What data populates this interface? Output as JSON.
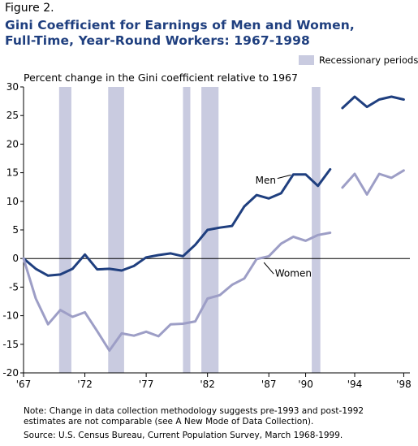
{
  "figure_label": "Figure 2.",
  "chart_data": {
    "type": "line",
    "title": [
      "Gini Coefficient for Earnings of Men and Women,",
      "Full-Time, Year-Round Workers:  1967-1998"
    ],
    "subtitle": "Percent change in the Gini coefficient relative to 1967",
    "legend": {
      "label": "Recessionary periods",
      "placement": "top-right",
      "color": "#c9cbe0"
    },
    "ylim": [
      -20,
      30
    ],
    "yticks": [
      30,
      25,
      20,
      15,
      10,
      5,
      0,
      -5,
      -10,
      -15,
      -20
    ],
    "ytick_labels": [
      "30",
      "25",
      "20",
      "15",
      "10",
      "5",
      "0",
      "-5",
      "-10",
      "-15",
      "-20"
    ],
    "xlim": [
      1967,
      1998.5
    ],
    "xticks": [
      {
        "x": 1967,
        "label": "'67"
      },
      {
        "x": 1972,
        "label": "'72"
      },
      {
        "x": 1977,
        "label": "'77"
      },
      {
        "x": 1982,
        "label": "'82"
      },
      {
        "x": 1987,
        "label": "'87"
      },
      {
        "x": 1990,
        "label": "'90"
      },
      {
        "x": 1994,
        "label": "'94"
      },
      {
        "x": 1998,
        "label": "'98"
      }
    ],
    "recessions": [
      [
        1969.9,
        1970.9
      ],
      [
        1973.9,
        1975.2
      ],
      [
        1980.0,
        1980.6
      ],
      [
        1981.5,
        1982.9
      ],
      [
        1990.5,
        1991.2
      ]
    ],
    "series": [
      {
        "name": "Men",
        "color": "#1f3f7f",
        "segments": [
          [
            [
              1967,
              0
            ],
            [
              1968,
              -1.8
            ],
            [
              1969,
              -3
            ],
            [
              1970,
              -2.8
            ],
            [
              1971,
              -1.8
            ],
            [
              1972,
              0.7
            ],
            [
              1973,
              -1.9
            ],
            [
              1974,
              -1.8
            ],
            [
              1975,
              -2.1
            ],
            [
              1976,
              -1.3
            ],
            [
              1977,
              0.2
            ],
            [
              1978,
              0.6
            ],
            [
              1979,
              0.9
            ],
            [
              1980,
              0.4
            ],
            [
              1981,
              2.4
            ],
            [
              1982,
              5
            ],
            [
              1983,
              5.4
            ],
            [
              1984,
              5.7
            ],
            [
              1985,
              9.1
            ],
            [
              1986,
              11.1
            ],
            [
              1987,
              10.5
            ],
            [
              1988,
              11.4
            ],
            [
              1989,
              14.7
            ],
            [
              1990,
              14.7
            ],
            [
              1991,
              12.7
            ],
            [
              1992,
              15.6
            ]
          ],
          [
            [
              1993,
              26.3
            ],
            [
              1994,
              28.3
            ],
            [
              1995,
              26.5
            ],
            [
              1996,
              27.8
            ],
            [
              1997,
              28.3
            ],
            [
              1998,
              27.8
            ]
          ]
        ]
      },
      {
        "name": "Women",
        "color": "#9d9ec6",
        "segments": [
          [
            [
              1967,
              0
            ],
            [
              1968,
              -7
            ],
            [
              1969,
              -11.5
            ],
            [
              1970,
              -9
            ],
            [
              1971,
              -10.2
            ],
            [
              1972,
              -9.4
            ],
            [
              1973,
              -12.7
            ],
            [
              1974,
              -16.1
            ],
            [
              1975,
              -13.1
            ],
            [
              1976,
              -13.5
            ],
            [
              1977,
              -12.8
            ],
            [
              1978,
              -13.6
            ],
            [
              1979,
              -11.5
            ],
            [
              1980,
              -11.4
            ],
            [
              1981,
              -11
            ],
            [
              1982,
              -7
            ],
            [
              1983,
              -6.4
            ],
            [
              1984,
              -4.6
            ],
            [
              1985,
              -3.5
            ],
            [
              1986,
              -0.1
            ],
            [
              1987,
              0.4
            ],
            [
              1988,
              2.6
            ],
            [
              1989,
              3.8
            ],
            [
              1990,
              3.1
            ],
            [
              1991,
              4.1
            ],
            [
              1992,
              4.5
            ]
          ],
          [
            [
              1993,
              12.4
            ],
            [
              1994,
              14.8
            ],
            [
              1995,
              11.2
            ],
            [
              1996,
              14.8
            ],
            [
              1997,
              14.1
            ],
            [
              1998,
              15.4
            ]
          ]
        ]
      }
    ],
    "annotations": [
      {
        "text": "Men",
        "x": 1985.9,
        "y": 13.7
      },
      {
        "text": "Women",
        "x": 1987.5,
        "y": -2.6
      }
    ]
  },
  "notes": {
    "line1": "Note:  Change in data collection methodology suggests pre-1993 and post-1992",
    "line2": "estimates are not comparable (see A New Mode of Data Collection).",
    "source": "Source:  U.S. Census Bureau, Current Population Survey, March 1968-1999."
  }
}
